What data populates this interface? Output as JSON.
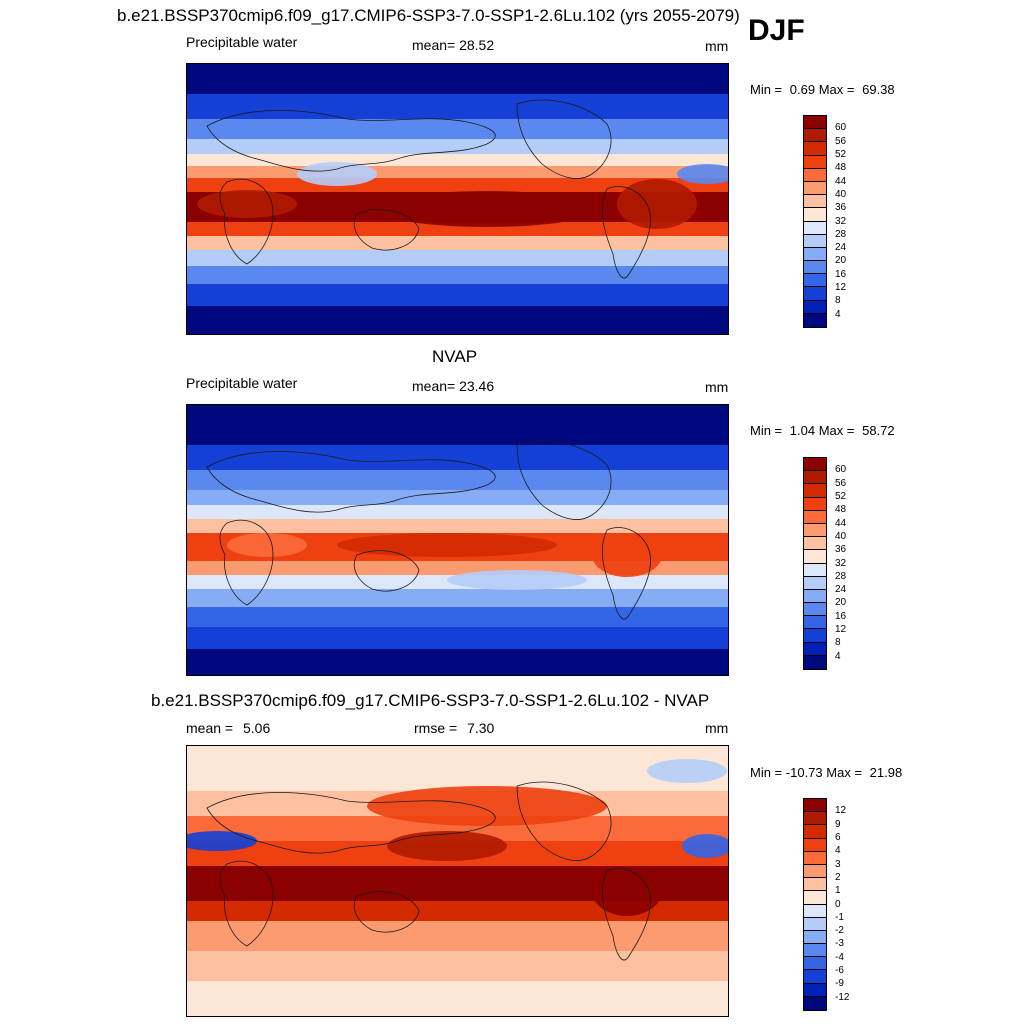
{
  "header": {
    "main_title": "b.e21.BSSP370cmip6.f09_g17.CMIP6-SSP3-7.0-SSP1-2.6Lu.102 (yrs 2055-2079)",
    "season": "DJF"
  },
  "panels": [
    {
      "id": "model",
      "title": "",
      "variable": "Precipitable water",
      "stat_label": "mean=",
      "stat_value": "28.52",
      "stat2_label": "",
      "stat2_value": "",
      "units": "mm",
      "min_label": "Min =",
      "min_value": "0.69",
      "max_label": "Max =",
      "max_value": "69.38",
      "colorbar": {
        "labels": [
          "60",
          "56",
          "52",
          "48",
          "44",
          "40",
          "36",
          "32",
          "28",
          "24",
          "20",
          "16",
          "12",
          "8",
          "4"
        ],
        "colors": [
          "#8b0000",
          "#b01a00",
          "#d42a00",
          "#ee4010",
          "#fb6a3a",
          "#fc9a70",
          "#fdc0a0",
          "#fde6d6",
          "#dce8fa",
          "#b4cdf8",
          "#86acf5",
          "#5a88ef",
          "#3366e6",
          "#1440d6",
          "#0020b8",
          "#00087e"
        ]
      }
    },
    {
      "id": "obs",
      "title": "NVAP",
      "variable": "Precipitable water",
      "stat_label": "mean=",
      "stat_value": "23.46",
      "stat2_label": "",
      "stat2_value": "",
      "units": "mm",
      "min_label": "Min =",
      "min_value": "1.04",
      "max_label": "Max =",
      "max_value": "58.72",
      "colorbar": {
        "labels": [
          "60",
          "56",
          "52",
          "48",
          "44",
          "40",
          "36",
          "32",
          "28",
          "24",
          "20",
          "16",
          "12",
          "8",
          "4"
        ],
        "colors": [
          "#8b0000",
          "#b01a00",
          "#d42a00",
          "#ee4010",
          "#fb6a3a",
          "#fc9a70",
          "#fdc0a0",
          "#fde6d6",
          "#dce8fa",
          "#b4cdf8",
          "#86acf5",
          "#5a88ef",
          "#3366e6",
          "#1440d6",
          "#0020b8",
          "#00087e"
        ]
      }
    },
    {
      "id": "diff",
      "title": "b.e21.BSSP370cmip6.f09_g17.CMIP6-SSP3-7.0-SSP1-2.6Lu.102 - NVAP",
      "variable": "",
      "stat_label": "mean =",
      "stat_value": "5.06",
      "stat2_label": "rmse =",
      "stat2_value": "7.30",
      "units": "mm",
      "min_label": "Min =",
      "min_value": "-10.73",
      "max_label": "Max =",
      "max_value": "21.98",
      "colorbar": {
        "labels": [
          "12",
          "9",
          "6",
          "4",
          "3",
          "2",
          "1",
          "0",
          "-1",
          "-2",
          "-3",
          "-4",
          "-6",
          "-9",
          "-12"
        ],
        "colors": [
          "#8b0000",
          "#b01a00",
          "#d42a00",
          "#ee4010",
          "#fb6a3a",
          "#fc9a70",
          "#fdc0a0",
          "#fde6d6",
          "#dce8fa",
          "#b4cdf8",
          "#86acf5",
          "#5a88ef",
          "#3366e6",
          "#1440d6",
          "#0020b8",
          "#00087e"
        ]
      }
    }
  ]
}
